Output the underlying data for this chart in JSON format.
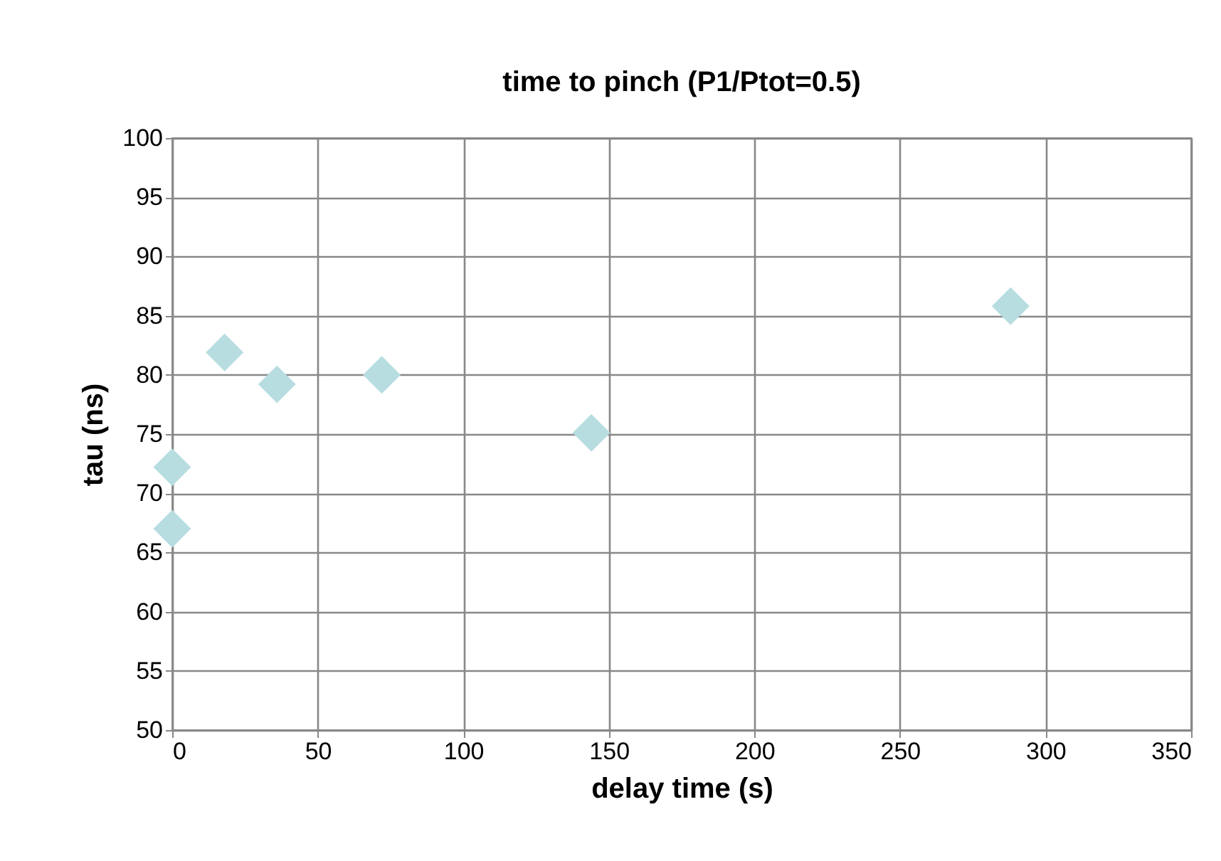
{
  "chart_data": {
    "type": "scatter",
    "title": "time to pinch (P1/Ptot=0.5)",
    "xlabel": "delay time (s)",
    "ylabel": "tau (ns)",
    "x": [
      0,
      0,
      18,
      36,
      72,
      144,
      288
    ],
    "series": [
      {
        "color": "#b7dde0",
        "values": [
          72.2,
          67.0,
          81.9,
          79.2,
          80.0,
          75.1,
          85.8
        ]
      }
    ],
    "xlim": [
      0,
      350
    ],
    "xticks": [
      0,
      50,
      100,
      150,
      200,
      250,
      300,
      350
    ],
    "ylim": [
      50,
      100
    ],
    "yticks": [
      50,
      55,
      60,
      65,
      70,
      75,
      80,
      85,
      90,
      95,
      100
    ],
    "grid": true,
    "marker": "diamond"
  }
}
